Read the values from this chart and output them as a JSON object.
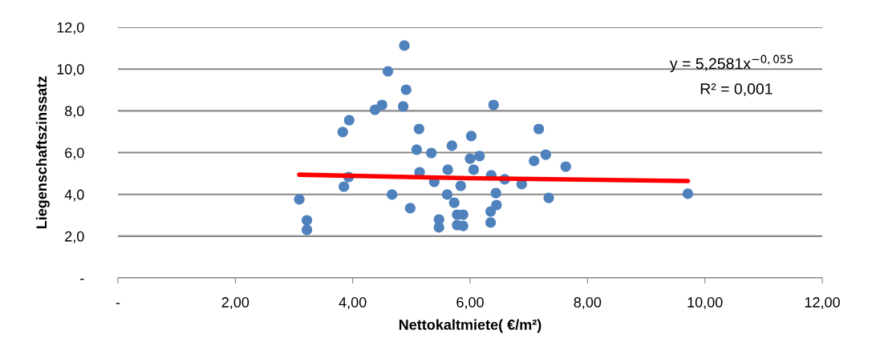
{
  "chart_data": {
    "type": "scatter",
    "xlabel": "Nettokaltmiete( €/m²)",
    "ylabel": "Liegenschaftszinssatz",
    "xlim": [
      0,
      12
    ],
    "ylim": [
      0,
      12
    ],
    "xticks": [
      {
        "value": 0,
        "label": "-"
      },
      {
        "value": 2,
        "label": "2,00"
      },
      {
        "value": 4,
        "label": "4,00"
      },
      {
        "value": 6,
        "label": "6,00"
      },
      {
        "value": 8,
        "label": "8,00"
      },
      {
        "value": 10,
        "label": "10,00"
      },
      {
        "value": 12,
        "label": "12,00"
      }
    ],
    "yticks": [
      {
        "value": 0,
        "label": "-"
      },
      {
        "value": 2,
        "label": "2,0"
      },
      {
        "value": 4,
        "label": "4,0"
      },
      {
        "value": 6,
        "label": "6,0"
      },
      {
        "value": 8,
        "label": "8,0"
      },
      {
        "value": 10,
        "label": "10,0"
      },
      {
        "value": 12,
        "label": "12,0"
      }
    ],
    "grid": "y",
    "marker": "circle",
    "legend": false,
    "annotations": [
      "y = 5,2581x$^{−0,055}$",
      "R² = 0,001"
    ],
    "series": [
      {
        "color": "#4f81bd",
        "x": [
          4.88,
          4.6,
          4.91,
          4.5,
          4.38,
          4.86,
          6.4,
          3.94,
          3.83,
          5.13,
          6.02,
          5.69,
          5.09,
          5.34,
          6.16,
          6.0,
          7.17,
          3.09,
          3.22,
          3.22,
          3.93,
          3.85,
          4.67,
          4.98,
          5.14,
          5.39,
          5.62,
          5.84,
          5.61,
          5.73,
          5.78,
          5.88,
          5.78,
          5.88,
          5.47,
          5.47,
          6.06,
          6.36,
          6.59,
          6.88,
          6.44,
          6.45,
          6.35,
          6.35,
          7.09,
          7.29,
          7.63,
          7.34,
          9.71
        ],
        "values": [
          11.12,
          9.89,
          9.01,
          8.28,
          8.05,
          8.21,
          8.28,
          7.55,
          6.98,
          7.13,
          6.79,
          6.33,
          6.14,
          5.98,
          5.83,
          5.71,
          7.13,
          3.76,
          2.76,
          2.3,
          4.83,
          4.37,
          3.99,
          3.34,
          5.06,
          4.6,
          5.18,
          4.41,
          3.99,
          3.6,
          3.03,
          3.03,
          2.53,
          2.49,
          2.8,
          2.42,
          5.18,
          4.91,
          4.72,
          4.49,
          4.06,
          3.49,
          3.18,
          2.65,
          5.6,
          5.9,
          5.33,
          3.83,
          4.03
        ]
      },
      {
        "type": "line",
        "color": "#ff0000",
        "marker": "none",
        "x": [
          3.09,
          6.0,
          9.71
        ],
        "values": [
          4.94,
          4.77,
          4.64
        ]
      }
    ]
  }
}
